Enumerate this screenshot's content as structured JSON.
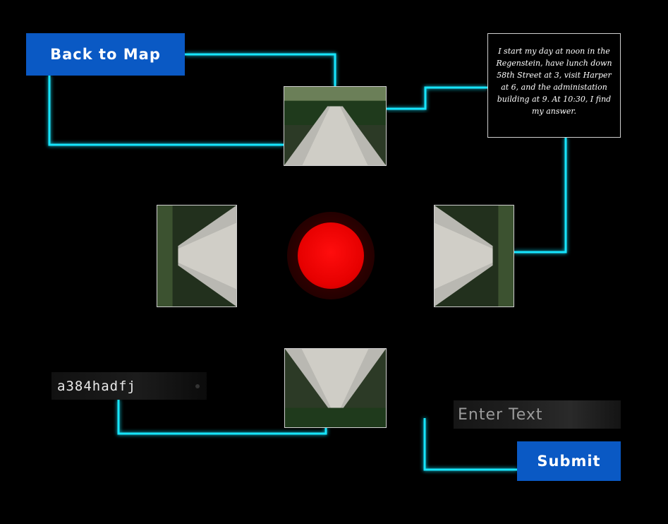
{
  "nav": {
    "back_label": "Back to Map"
  },
  "puzzle": {
    "hint_text": "I start my day at noon in the Regenstein, have lunch down 58th Street at 3, visit Harper at 6, and the administation building at 9. At 10:30, I find my answer.",
    "code_text": "a384hadfj"
  },
  "answer": {
    "placeholder": "Enter Text",
    "submit_label": "Submit"
  },
  "colors": {
    "wire": "#19e6ff",
    "button": "#0a59c4",
    "core": "#e60000",
    "background": "#000000"
  },
  "photos": [
    {
      "id": "north",
      "icon": "path-photo"
    },
    {
      "id": "west",
      "icon": "path-photo"
    },
    {
      "id": "east",
      "icon": "path-photo"
    },
    {
      "id": "south",
      "icon": "path-photo"
    }
  ]
}
